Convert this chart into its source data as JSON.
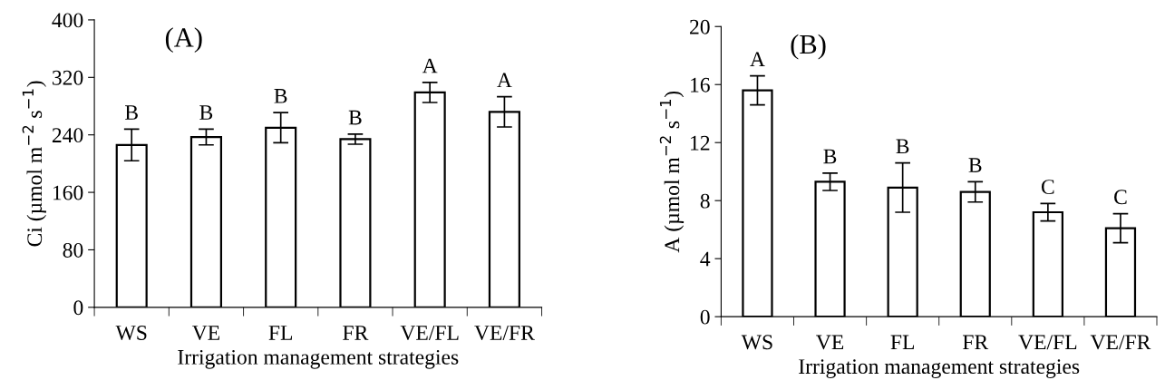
{
  "chart_data": [
    {
      "type": "bar",
      "title": "(A)",
      "xlabel": "Irrigation management strategies",
      "ylabel": "Ci (µmol m$^{−2}$ s$^{−1}$)",
      "categories": [
        "WS",
        "VE",
        "FL",
        "FR",
        "VE/FL",
        "VE/FR"
      ],
      "series": [
        {
          "color": "#ffffff",
          "values": [
            226,
            237,
            250,
            234,
            299,
            272
          ],
          "errors": [
            22,
            11,
            21,
            7,
            14,
            21
          ]
        }
      ],
      "ylim": [
        0,
        400
      ],
      "yticks": [
        0,
        80,
        160,
        240,
        320,
        400
      ],
      "grid": false,
      "legend": false,
      "annotations": [
        {
          "text": "B",
          "x": "WS",
          "y": 248
        },
        {
          "text": "B",
          "x": "VE",
          "y": 248
        },
        {
          "text": "B",
          "x": "FL",
          "y": 271
        },
        {
          "text": "B",
          "x": "FR",
          "y": 241
        },
        {
          "text": "A",
          "x": "VE/FL",
          "y": 313
        },
        {
          "text": "A",
          "x": "VE/FR",
          "y": 293
        }
      ]
    },
    {
      "type": "bar",
      "title": "(B)",
      "xlabel": "Irrigation management strategies",
      "ylabel": "A (µmol m$^{−2}$ s$^{−1}$)",
      "categories": [
        "WS",
        "VE",
        "FL",
        "FR",
        "VE/FL",
        "VE/FR"
      ],
      "series": [
        {
          "color": "#ffffff",
          "values": [
            15.6,
            9.3,
            8.9,
            8.6,
            7.2,
            6.1
          ],
          "errors": [
            1.0,
            0.6,
            1.7,
            0.7,
            0.6,
            1.0
          ]
        }
      ],
      "ylim": [
        0,
        20
      ],
      "yticks": [
        0,
        4,
        8,
        12,
        16,
        20
      ],
      "grid": false,
      "legend": false,
      "annotations": [
        {
          "text": "A",
          "x": "WS",
          "y": 16.6
        },
        {
          "text": "B",
          "x": "VE",
          "y": 9.9
        },
        {
          "text": "B",
          "x": "FL",
          "y": 10.6
        },
        {
          "text": "B",
          "x": "FR",
          "y": 9.3
        },
        {
          "text": "C",
          "x": "VE/FL",
          "y": 7.8
        },
        {
          "text": "C",
          "x": "VE/FR",
          "y": 7.1
        }
      ]
    }
  ]
}
